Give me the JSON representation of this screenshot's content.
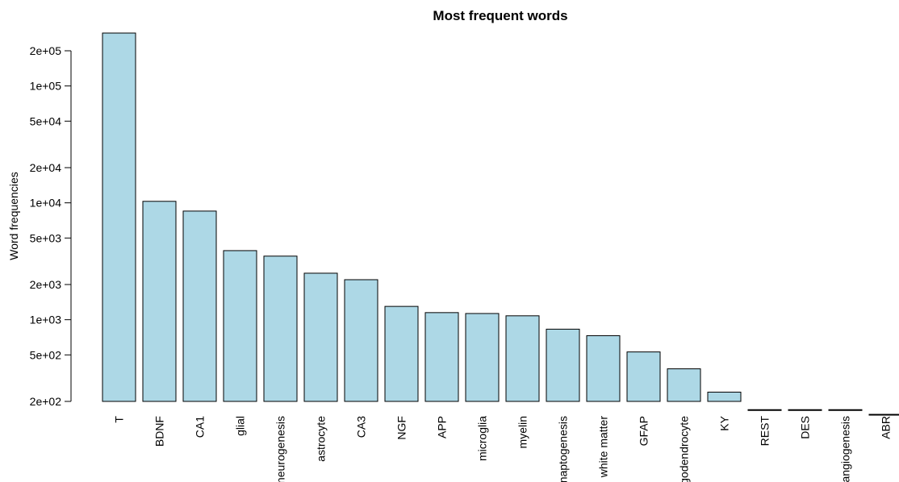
{
  "chart_data": {
    "type": "bar",
    "title": "Most frequent words",
    "xlabel": "",
    "ylabel": "Word frequencies",
    "y_scale": "log",
    "ylim": [
      200,
      300000
    ],
    "y_ticks": [
      {
        "value": 200,
        "label": "2e+02"
      },
      {
        "value": 500,
        "label": "5e+02"
      },
      {
        "value": 1000,
        "label": "1e+03"
      },
      {
        "value": 2000,
        "label": "2e+03"
      },
      {
        "value": 5000,
        "label": "5e+03"
      },
      {
        "value": 10000,
        "label": "1e+04"
      },
      {
        "value": 20000,
        "label": "2e+04"
      },
      {
        "value": 50000,
        "label": "5e+04"
      },
      {
        "value": 100000,
        "label": "1e+05"
      },
      {
        "value": 200000,
        "label": "2e+05"
      }
    ],
    "categories": [
      "T",
      "BDNF",
      "CA1",
      "glial",
      "neurogenesis",
      "astrocyte",
      "CA3",
      "NGF",
      "APP",
      "microglia",
      "myelin",
      "synaptogenesis",
      "white matter",
      "GFAP",
      "oligodendrocyte",
      "KY",
      "REST",
      "DES",
      "angiogenesis",
      "ABR"
    ],
    "values": [
      290000,
      10300,
      8500,
      3900,
      3500,
      2500,
      2200,
      1300,
      1150,
      1130,
      1080,
      830,
      730,
      530,
      380,
      240,
      170,
      170,
      170,
      155
    ],
    "bar_color": "#ADD8E6",
    "grid": false,
    "legend": "none"
  }
}
